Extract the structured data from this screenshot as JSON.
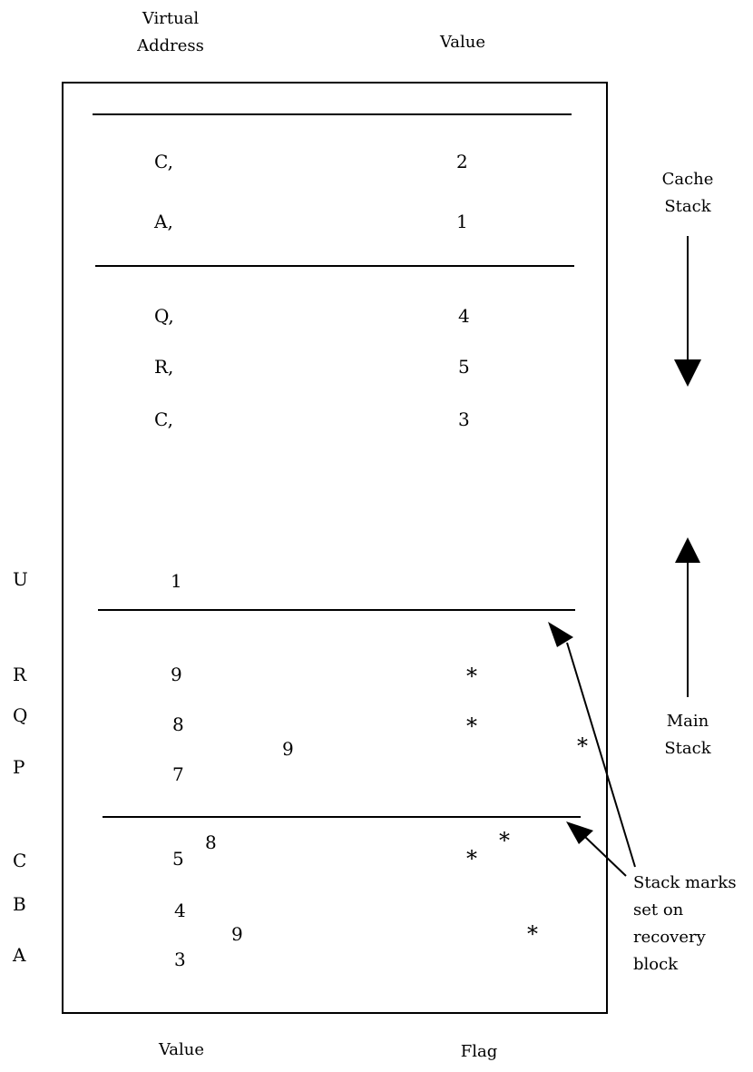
{
  "header": {
    "virtual_address": "Virtual Address",
    "value": "Value"
  },
  "footer": {
    "value": "Value",
    "flag": "Flag"
  },
  "cache_stack": {
    "label": "Cache Stack",
    "rows": [
      {
        "address": "C,",
        "value": "2"
      },
      {
        "address": "A,",
        "value": "1"
      },
      {
        "address": "Q,",
        "value": "4"
      },
      {
        "address": "R,",
        "value": "5"
      },
      {
        "address": "C,",
        "value": "3"
      }
    ]
  },
  "main_stack": {
    "label": "Main Stack",
    "rows": [
      {
        "name": "U",
        "value": "1",
        "flag": ""
      },
      {
        "name": "R",
        "value": "9",
        "flag": "*"
      },
      {
        "name": "Q",
        "value": "8",
        "flag": "*"
      },
      {
        "name": "P",
        "value": "7",
        "flag": ""
      },
      {
        "name": "C",
        "value": "5",
        "flag": "*"
      },
      {
        "name": "B",
        "value": "4",
        "flag": ""
      },
      {
        "name": "A",
        "value": "3",
        "flag": ""
      }
    ]
  },
  "overwrites": [
    {
      "value": "9",
      "flag": "*"
    },
    {
      "value": "8",
      "flag": "*"
    },
    {
      "value": "9",
      "flag": "*"
    }
  ],
  "annotation": "Stack marks set on recovery block"
}
